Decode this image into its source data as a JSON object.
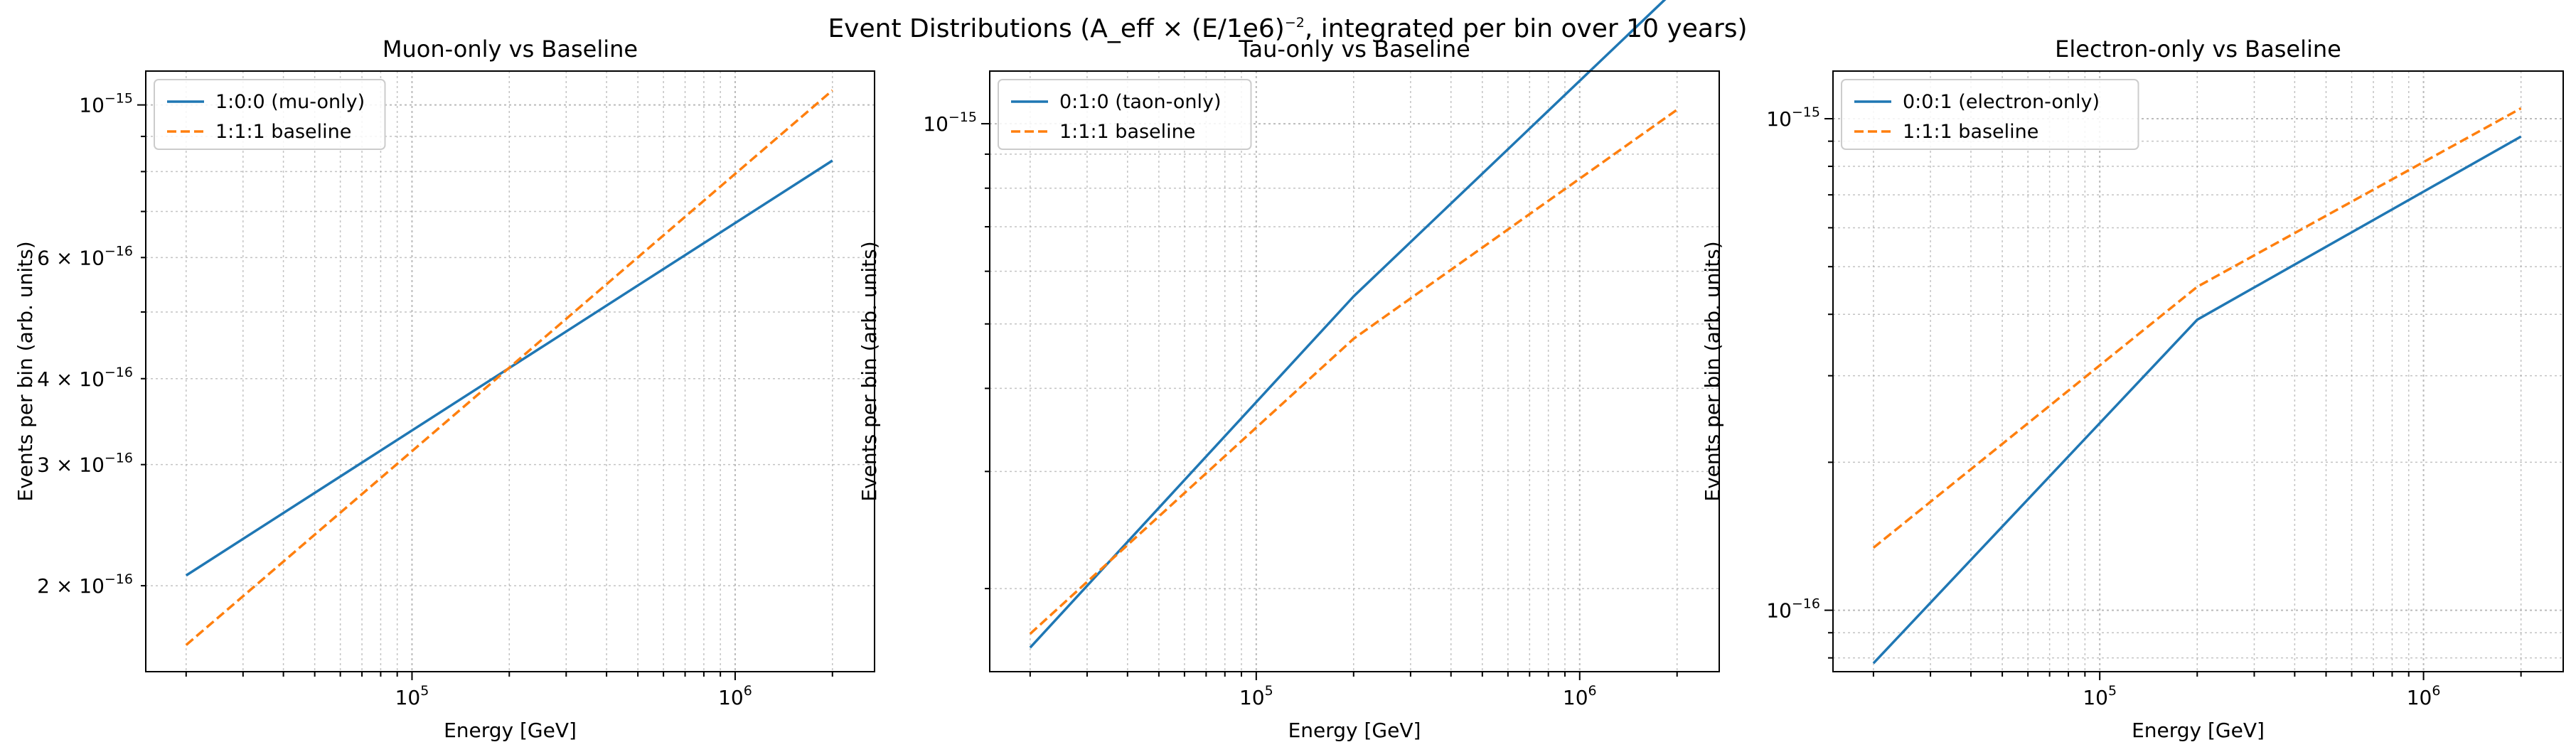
{
  "figure": {
    "suptitle_pre": "Event Distributions (A_eff × (E/1e6)",
    "suptitle_exp": "−2",
    "suptitle_post": ", integrated per bin over 10 years)"
  },
  "chart_data": [
    {
      "type": "line",
      "title": "Muon-only vs Baseline",
      "xlabel": "Energy [GeV]",
      "ylabel": "Events per bin (arb. units)",
      "xscale": "log",
      "yscale": "log",
      "xlim": [
        15000,
        2700000
      ],
      "ylim": [
        1.5e-16,
        1.12e-15
      ],
      "grid": "major and minor, dotted",
      "legend_position": "upper-left",
      "x_major_ticks": [
        {
          "value": 100000,
          "base": "10",
          "exp": "5"
        },
        {
          "value": 1000000,
          "base": "10",
          "exp": "6"
        }
      ],
      "y_major_ticks": [
        {
          "value": 1e-15,
          "base": "10",
          "exp": "−15",
          "mult": ""
        }
      ],
      "y_minor_ticks": [
        {
          "value": 2e-16,
          "mult": "2 × ",
          "base": "10",
          "exp": "−16"
        },
        {
          "value": 3e-16,
          "mult": "3 × ",
          "base": "10",
          "exp": "−16"
        },
        {
          "value": 4e-16,
          "mult": "4 × ",
          "base": "10",
          "exp": "−16"
        },
        {
          "value": 6e-16,
          "mult": "6 × ",
          "base": "10",
          "exp": "−16"
        }
      ],
      "series": [
        {
          "name": "1:0:0 (mu-only)",
          "color": "#1f77b4",
          "dash": "solid",
          "x": [
            20000,
            2000000
          ],
          "y": [
            2.07e-16,
            8.3e-16
          ]
        },
        {
          "name": "1:1:1 baseline",
          "color": "#ff7f0e",
          "dash": "dashed",
          "x": [
            20000,
            2000000
          ],
          "y": [
            1.64e-16,
            1.05e-15
          ]
        }
      ]
    },
    {
      "type": "line",
      "title": "Tau-only vs Baseline",
      "xlabel": "Energy [GeV]",
      "ylabel": "Events per bin (arb. units)",
      "xscale": "log",
      "yscale": "log",
      "xlim": [
        15000,
        2700000
      ],
      "ylim": [
        1.5e-16,
        1.2e-15
      ],
      "grid": "major and minor, dotted",
      "legend_position": "upper-left",
      "x_major_ticks": [
        {
          "value": 100000,
          "base": "10",
          "exp": "5"
        },
        {
          "value": 1000000,
          "base": "10",
          "exp": "6"
        }
      ],
      "y_major_ticks": [
        {
          "value": 1e-15,
          "base": "10",
          "exp": "−15",
          "mult": ""
        }
      ],
      "y_minor_ticks": [],
      "series": [
        {
          "name": "0:1:0 (taon-only)",
          "color": "#1f77b4",
          "dash": "solid",
          "x": [
            20000,
            200000,
            2000000
          ],
          "y": [
            1.63e-16,
            5.5e-16,
            1.6e-15
          ]
        },
        {
          "name": "1:1:1 baseline",
          "color": "#ff7f0e",
          "dash": "dashed",
          "x": [
            20000,
            200000,
            2000000
          ],
          "y": [
            1.71e-16,
            4.75e-16,
            1.05e-15
          ]
        }
      ]
    },
    {
      "type": "line",
      "title": "Electron-only vs Baseline",
      "xlabel": "Energy [GeV]",
      "ylabel": "Events per bin (arb. units)",
      "xscale": "log",
      "yscale": "log",
      "xlim": [
        15000,
        2700000
      ],
      "ylim": [
        7.5e-17,
        1.25e-15
      ],
      "grid": "major and minor, dotted",
      "legend_position": "upper-left",
      "x_major_ticks": [
        {
          "value": 100000,
          "base": "10",
          "exp": "5"
        },
        {
          "value": 1000000,
          "base": "10",
          "exp": "6"
        }
      ],
      "y_major_ticks": [
        {
          "value": 1e-16,
          "base": "10",
          "exp": "−16",
          "mult": ""
        },
        {
          "value": 1e-15,
          "base": "10",
          "exp": "−15",
          "mult": ""
        }
      ],
      "y_minor_ticks": [],
      "series": [
        {
          "name": "0:0:1 (electron-only)",
          "color": "#1f77b4",
          "dash": "solid",
          "x": [
            20000,
            200000,
            2000000
          ],
          "y": [
            7.8e-17,
            3.9e-16,
            9.2e-16
          ]
        },
        {
          "name": "1:1:1 baseline",
          "color": "#ff7f0e",
          "dash": "dashed",
          "x": [
            20000,
            200000,
            2000000
          ],
          "y": [
            1.34e-16,
            4.55e-16,
            1.05e-15
          ]
        }
      ]
    }
  ]
}
